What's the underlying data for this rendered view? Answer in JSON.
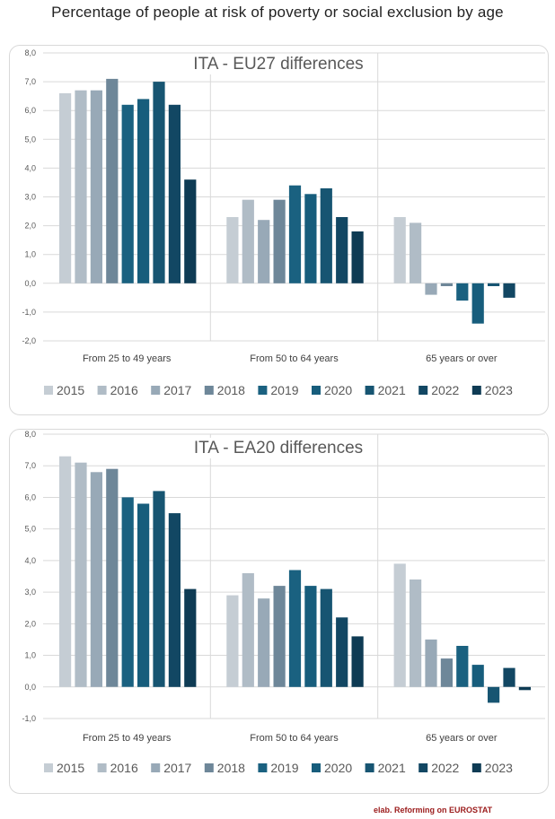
{
  "page_title": "Percentage of people at risk of poverty or social exclusion by age",
  "source_note": "elab. Reforming on EUROSTAT",
  "colors": [
    "#c5cdd4",
    "#b0bcc6",
    "#98a9b7",
    "#6e8799",
    "#1a6180",
    "#175d7c",
    "#175572",
    "#124763",
    "#0e3b54"
  ],
  "chart_data": [
    {
      "type": "bar",
      "title": "ITA - EU27 differences",
      "categories": [
        "From 25 to 49 years",
        "From 50 to 64 years",
        "65 years or over"
      ],
      "ylim": [
        -2.0,
        8.0
      ],
      "yticks": [
        "-2,0",
        "-1,0",
        "0,0",
        "1,0",
        "2,0",
        "3,0",
        "4,0",
        "5,0",
        "6,0",
        "7,0",
        "8,0"
      ],
      "grid": true,
      "legend_position": "bottom",
      "series": [
        {
          "name": "2015",
          "values": [
            6.6,
            2.3,
            2.3
          ]
        },
        {
          "name": "2016",
          "values": [
            6.7,
            2.9,
            2.1
          ]
        },
        {
          "name": "2017",
          "values": [
            6.7,
            2.2,
            -0.4
          ]
        },
        {
          "name": "2018",
          "values": [
            7.1,
            2.9,
            -0.1
          ]
        },
        {
          "name": "2019",
          "values": [
            6.2,
            3.4,
            -0.6
          ]
        },
        {
          "name": "2020",
          "values": [
            6.4,
            3.1,
            -1.4
          ]
        },
        {
          "name": "2021",
          "values": [
            7.0,
            3.3,
            -0.1
          ]
        },
        {
          "name": "2022",
          "values": [
            6.2,
            2.3,
            -0.5
          ]
        },
        {
          "name": "2023",
          "values": [
            3.6,
            1.8,
            null
          ]
        }
      ]
    },
    {
      "type": "bar",
      "title": "ITA - EA20 differences",
      "categories": [
        "From 25 to 49 years",
        "From 50 to 64 years",
        "65 years or over"
      ],
      "ylim": [
        -1.0,
        8.0
      ],
      "yticks": [
        "-1,0",
        "0,0",
        "1,0",
        "2,0",
        "3,0",
        "4,0",
        "5,0",
        "6,0",
        "7,0",
        "8,0"
      ],
      "grid": true,
      "legend_position": "bottom",
      "series": [
        {
          "name": "2015",
          "values": [
            7.3,
            2.9,
            3.9
          ]
        },
        {
          "name": "2016",
          "values": [
            7.1,
            3.6,
            3.4
          ]
        },
        {
          "name": "2017",
          "values": [
            6.8,
            2.8,
            1.5
          ]
        },
        {
          "name": "2018",
          "values": [
            6.9,
            3.2,
            0.9
          ]
        },
        {
          "name": "2019",
          "values": [
            6.0,
            3.7,
            1.3
          ]
        },
        {
          "name": "2020",
          "values": [
            5.8,
            3.2,
            0.7
          ]
        },
        {
          "name": "2021",
          "values": [
            6.2,
            3.1,
            -0.5
          ]
        },
        {
          "name": "2022",
          "values": [
            5.5,
            2.2,
            0.6
          ]
        },
        {
          "name": "2023",
          "values": [
            3.1,
            1.6,
            -0.1
          ]
        }
      ]
    }
  ]
}
